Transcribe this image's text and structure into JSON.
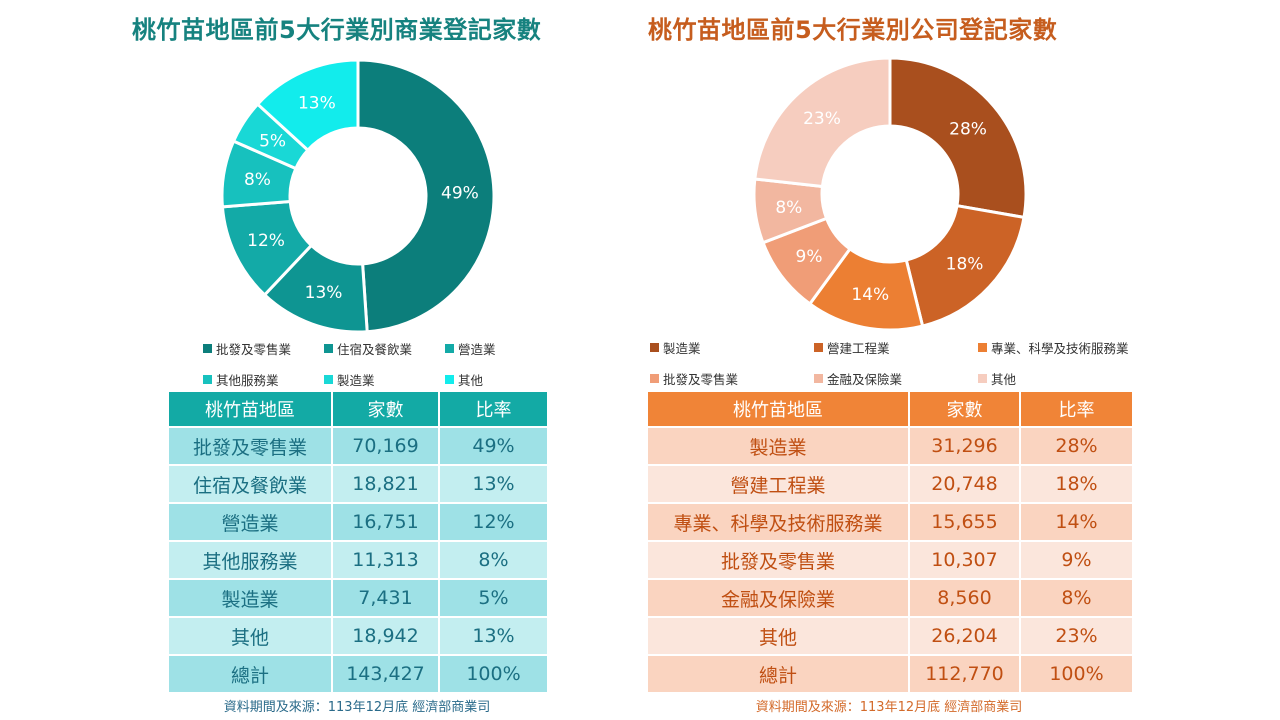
{
  "left": {
    "title": "桃竹苗地區前5大行業別商業登記家數",
    "table_headers": [
      "桃竹苗地區",
      "家數",
      "比率"
    ],
    "rows": [
      {
        "name": "批發及零售業",
        "count": "70,169",
        "ratio": "49%"
      },
      {
        "name": "住宿及餐飲業",
        "count": "18,821",
        "ratio": "13%"
      },
      {
        "name": "營造業",
        "count": "16,751",
        "ratio": "12%"
      },
      {
        "name": "其他服務業",
        "count": "11,313",
        "ratio": "8%"
      },
      {
        "name": "製造業",
        "count": "7,431",
        "ratio": "5%"
      },
      {
        "name": "其他",
        "count": "18,942",
        "ratio": "13%"
      },
      {
        "name": "總計",
        "count": "143,427",
        "ratio": "100%"
      }
    ],
    "source": "資料期間及來源：113年12月底  經濟部商業司"
  },
  "right": {
    "title": "桃竹苗地區前5大行業別公司登記家數",
    "table_headers": [
      "桃竹苗地區",
      "家數",
      "比率"
    ],
    "rows": [
      {
        "name": "製造業",
        "count": "31,296",
        "ratio": "28%"
      },
      {
        "name": "營建工程業",
        "count": "20,748",
        "ratio": "18%"
      },
      {
        "name": "專業、科學及技術服務業",
        "count": "15,655",
        "ratio": "14%"
      },
      {
        "name": "批發及零售業",
        "count": "10,307",
        "ratio": "9%"
      },
      {
        "name": "金融及保險業",
        "count": "8,560",
        "ratio": "8%"
      },
      {
        "name": "其他",
        "count": "26,204",
        "ratio": "23%"
      },
      {
        "name": "總計",
        "count": "112,770",
        "ratio": "100%"
      }
    ],
    "source": "資料期間及來源：113年12月底  經濟部商業司"
  },
  "chart_data": [
    {
      "type": "pie",
      "title": "桃竹苗地區前5大行業別商業登記家數",
      "categories": [
        "批發及零售業",
        "住宿及餐飲業",
        "營造業",
        "其他服務業",
        "製造業",
        "其他"
      ],
      "values": [
        70169,
        18821,
        16751,
        11313,
        7431,
        18942
      ],
      "labels": [
        "49%",
        "13%",
        "12%",
        "8%",
        "5%",
        "13%"
      ],
      "colors": [
        "#0c7e7b",
        "#0e9592",
        "#13aaa7",
        "#17c1be",
        "#19d8d6",
        "#12ecec"
      ],
      "legend_position": "bottom"
    },
    {
      "type": "pie",
      "title": "桃竹苗地區前5大行業別公司登記家數",
      "categories": [
        "製造業",
        "營建工程業",
        "專業、科學及技術服務業",
        "批發及零售業",
        "金融及保險業",
        "其他"
      ],
      "values": [
        31296,
        20748,
        15655,
        10307,
        8560,
        26204
      ],
      "labels": [
        "28%",
        "18%",
        "14%",
        "9%",
        "8%",
        "23%"
      ],
      "colors": [
        "#a94f1e",
        "#cc6326",
        "#ec7f33",
        "#f09d77",
        "#f2b7a0",
        "#f6cdbf"
      ],
      "legend_position": "bottom"
    }
  ]
}
